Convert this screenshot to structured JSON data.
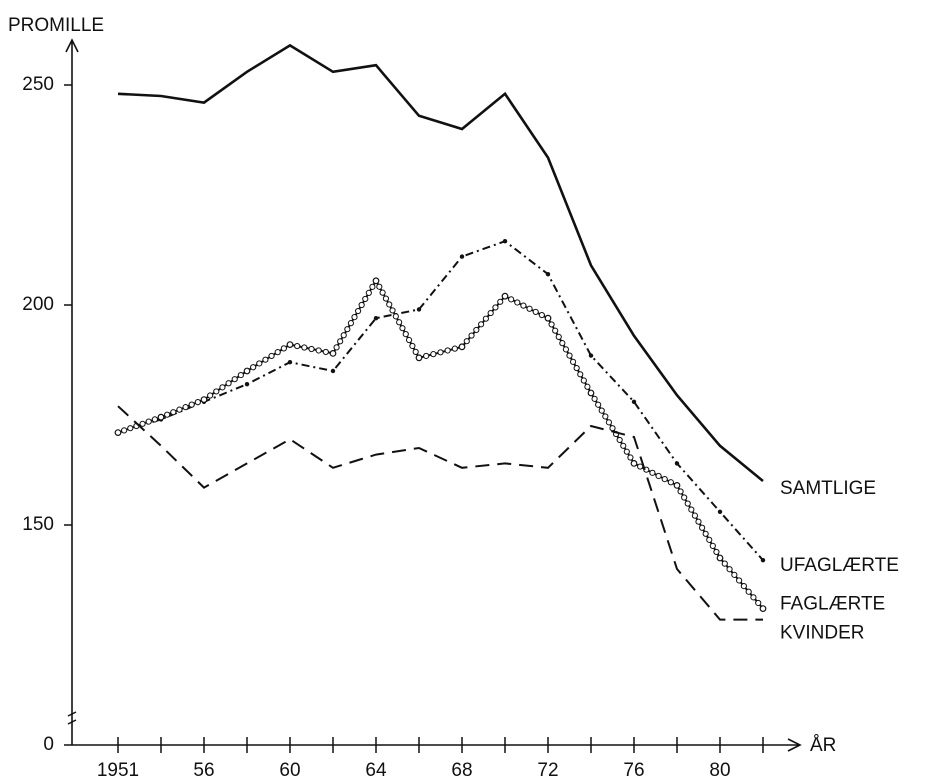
{
  "chart_data": {
    "type": "line",
    "y_label": "PROMILLE",
    "x_label": "ÅR",
    "categories": [
      "1951",
      null,
      "56",
      null,
      "60",
      null,
      "64",
      null,
      "68",
      null,
      "72",
      null,
      "76",
      null,
      "80",
      null
    ],
    "ylim": [
      100,
      265
    ],
    "yticks": [
      {
        "value": 100,
        "label": "0"
      },
      150,
      200,
      250
    ],
    "axis_break": true,
    "series": [
      {
        "name": "SAMTLIGE",
        "color": "#111111",
        "style": "solid",
        "values": [
          248,
          247.5,
          246,
          253,
          259,
          253,
          254.5,
          243,
          240,
          248,
          233.5,
          209,
          193,
          179.5,
          168,
          160
        ]
      },
      {
        "name": "UFAGLÆRTE",
        "color": "#111111",
        "style": "dashdot",
        "values": [
          171,
          174,
          178,
          182,
          187,
          185,
          197,
          199,
          211,
          214.5,
          207,
          188.5,
          178,
          164,
          153,
          142
        ]
      },
      {
        "name": "FAGLÆRTE",
        "color": "#111111",
        "style": "circles",
        "values": [
          171,
          174.5,
          178.5,
          185,
          191,
          189,
          205.5,
          188,
          190.5,
          202,
          197,
          180,
          164,
          159,
          142.5,
          131
        ]
      },
      {
        "name": "KVINDER",
        "color": "#111111",
        "style": "dashed",
        "values": [
          177,
          168,
          158.5,
          164,
          169.5,
          163,
          166,
          167.5,
          163,
          164,
          163,
          172.5,
          170,
          140,
          128.5,
          128.5
        ]
      }
    ]
  }
}
